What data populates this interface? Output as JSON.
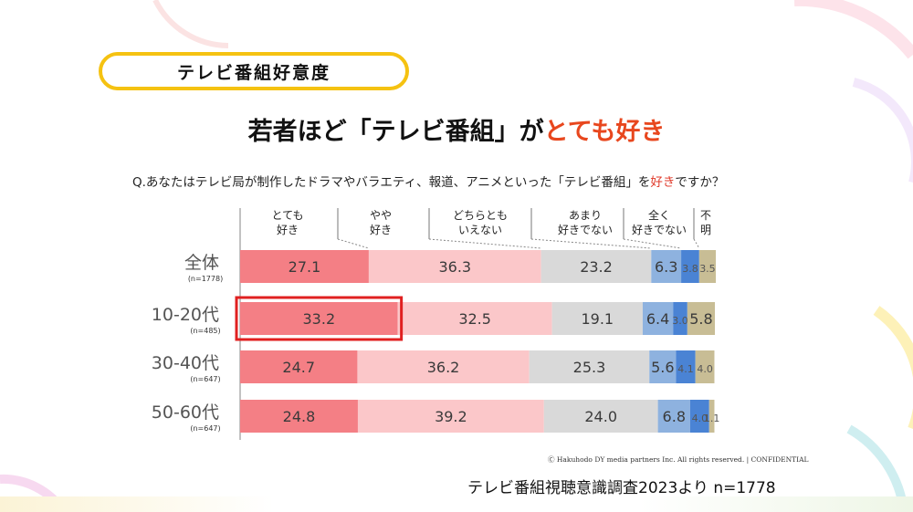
{
  "header": {
    "tag": "テレビ番組好意度",
    "headline_pre": "若者ほど「テレビ番組」が",
    "headline_accent": "とても好き",
    "question_pre": "Q.あなたはテレビ局が制作したドラマやバラエティ、報道、アニメといった「テレビ番組」を",
    "question_accent": "好き",
    "question_post": "ですか？"
  },
  "footer": {
    "copyright": "Ⓒ Hakuhodo DY media partners Inc. All rights reserved. | CONFIDENTIAL",
    "source": "テレビ番組視聴意識調査2023より n=1778"
  },
  "colors": {
    "very_like": "#f47f85",
    "somewhat_like": "#fbc7c9",
    "neutral": "#d9d9d9",
    "dislike": "#8eb2df",
    "strong_dislike": "#4a83d4",
    "unknown": "#c8bd95",
    "highlight": "#e02020",
    "tag_border": "#f5c211"
  },
  "chart_data": {
    "type": "bar",
    "orientation": "horizontal",
    "stacked": true,
    "categories": [
      {
        "label": "全体",
        "n": "(n=1778)"
      },
      {
        "label": "10-20代",
        "n": "(n=485)"
      },
      {
        "label": "30-40代",
        "n": "(n=647)"
      },
      {
        "label": "50-60代",
        "n": "(n=647)"
      }
    ],
    "series": [
      {
        "name_lines": [
          "とても",
          "好き"
        ],
        "key": "very_like",
        "values": [
          27.1,
          33.2,
          24.7,
          24.8
        ]
      },
      {
        "name_lines": [
          "やや",
          "好き"
        ],
        "key": "somewhat_like",
        "values": [
          36.3,
          32.5,
          36.2,
          39.2
        ]
      },
      {
        "name_lines": [
          "どちらとも",
          "いえない"
        ],
        "key": "neutral",
        "values": [
          23.2,
          19.1,
          25.3,
          24.0
        ]
      },
      {
        "name_lines": [
          "あまり",
          "好きでない"
        ],
        "key": "dislike",
        "values": [
          6.3,
          6.4,
          5.6,
          6.8
        ]
      },
      {
        "name_lines": [
          "全く",
          "好きでない"
        ],
        "key": "strong_dislike",
        "values": [
          3.8,
          3.0,
          4.1,
          4.0
        ]
      },
      {
        "name_lines": [
          "不",
          "明"
        ],
        "key": "unknown",
        "values": [
          3.5,
          5.8,
          4.0,
          1.1
        ]
      }
    ],
    "xlim": [
      0,
      100
    ],
    "highlight": {
      "category_index": 1,
      "series_index": 0
    }
  }
}
